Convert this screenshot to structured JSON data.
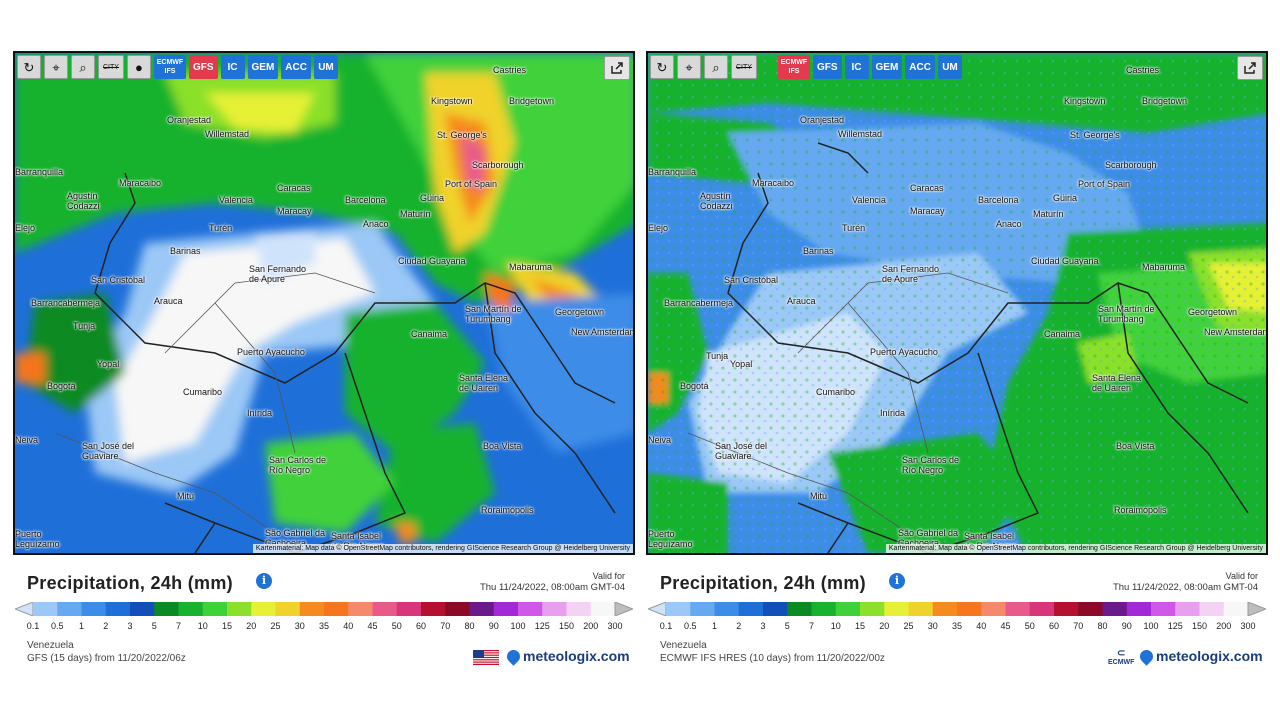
{
  "colors": {
    "scale": [
      "#cfe3fb",
      "#9bc8f6",
      "#66a9f0",
      "#3d8ce8",
      "#1f6fd9",
      "#124fb8",
      "#0a8a23",
      "#19b22e",
      "#3fd13a",
      "#8be02c",
      "#e6f036",
      "#f0d22c",
      "#f58a1e",
      "#f5761f",
      "#f48a6b",
      "#e85a8a",
      "#d8357a",
      "#b5102f",
      "#8c0a28",
      "#6a1a8a",
      "#a12ad6",
      "#cf58e8",
      "#e89ff0",
      "#f4d2f4",
      "#f7f7f7",
      "#bdbdbd"
    ]
  },
  "scale_values": [
    "0.1",
    "0.5",
    "1",
    "2",
    "3",
    "5",
    "7",
    "10",
    "15",
    "20",
    "25",
    "30",
    "35",
    "40",
    "45",
    "50",
    "60",
    "70",
    "80",
    "90",
    "100",
    "125",
    "150",
    "200",
    "300"
  ],
  "panels": [
    {
      "toolbar": {
        "refresh_icon": "↻",
        "pin_icon": "⌖",
        "zoom_icon": "⌕",
        "city_label": "CITY",
        "circle_icon": "●",
        "models": [
          {
            "label": "ECMWF IFS",
            "active": false
          },
          {
            "label": "GFS",
            "active": true
          },
          {
            "label": "IC",
            "active": false
          },
          {
            "label": "GEM",
            "active": false
          },
          {
            "label": "ACC",
            "active": false
          },
          {
            "label": "UM",
            "active": false
          }
        ],
        "share_icon": "share-icon"
      },
      "cities": [
        "Castries",
        "Kingstown",
        "Bridgetown",
        "St. George's",
        "Oranjestad",
        "Willemstad",
        "Scarborough",
        "Port of Spain",
        "Barranquilla",
        "Maracaibo",
        "Caracas",
        "Valencia",
        "Maracay",
        "Barcelona",
        "Güiria",
        "Maturín",
        "Agustín Codazzi",
        "Anaco",
        "Turén",
        "Barinas",
        "San Fernando de Apure",
        "Ciudad Guayana",
        "Mabaruma",
        "San Cristóbal",
        "Arauca",
        "Barrancabermeja",
        "San Martín de Turumbang",
        "Georgetown",
        "New Amsterdam",
        "Canaima",
        "Tunja",
        "Yopal",
        "Puerto Ayacucho",
        "Bogotá",
        "Cumaribo",
        "Santa Elena de Uairen",
        "Inírida",
        "Boa Vista",
        "San José del Guaviare",
        "San Carlos de Río Negro",
        "Mitú",
        "Roraimópolis",
        "São Gabriel da Cachoeira",
        "Santa Isabel do Rio Negro",
        "Puerto Leguízamo",
        "Neiva",
        "Elejo"
      ],
      "attribution": "Kartenmaterial: Map data © OpenStreetMap contributors, rendering GIScience Research Group @ Heidelberg University",
      "legend": {
        "title": "Precipitation, 24h (mm)",
        "valid_label": "Valid for",
        "valid_date": "Thu 11/24/2022, 08:00am GMT-04",
        "region": "Venezuela",
        "source": "GFS (15 days) from 11/20/2022/06z",
        "brand": "meteologix.com"
      }
    },
    {
      "toolbar": {
        "refresh_icon": "↻",
        "pin_icon": "⌖",
        "zoom_icon": "⌕",
        "city_label": "CITY",
        "models": [
          {
            "label": "ECMWF IFS",
            "active": true
          },
          {
            "label": "GFS",
            "active": false
          },
          {
            "label": "IC",
            "active": false
          },
          {
            "label": "GEM",
            "active": false
          },
          {
            "label": "ACC",
            "active": false
          },
          {
            "label": "UM",
            "active": false
          }
        ],
        "share_icon": "share-icon"
      },
      "attribution": "Kartenmaterial: Map data © OpenStreetMap contributors, rendering GIScience Research Group @ Heidelberg University",
      "legend": {
        "title": "Precipitation, 24h (mm)",
        "valid_label": "Valid for",
        "valid_date": "Thu 11/24/2022, 08:00am GMT-04",
        "region": "Venezuela",
        "source": "ECMWF IFS HRES (10 days) from 11/20/2022/00z",
        "brand": "meteologix.com",
        "ecmwf_logo": "ECMWF"
      }
    }
  ]
}
